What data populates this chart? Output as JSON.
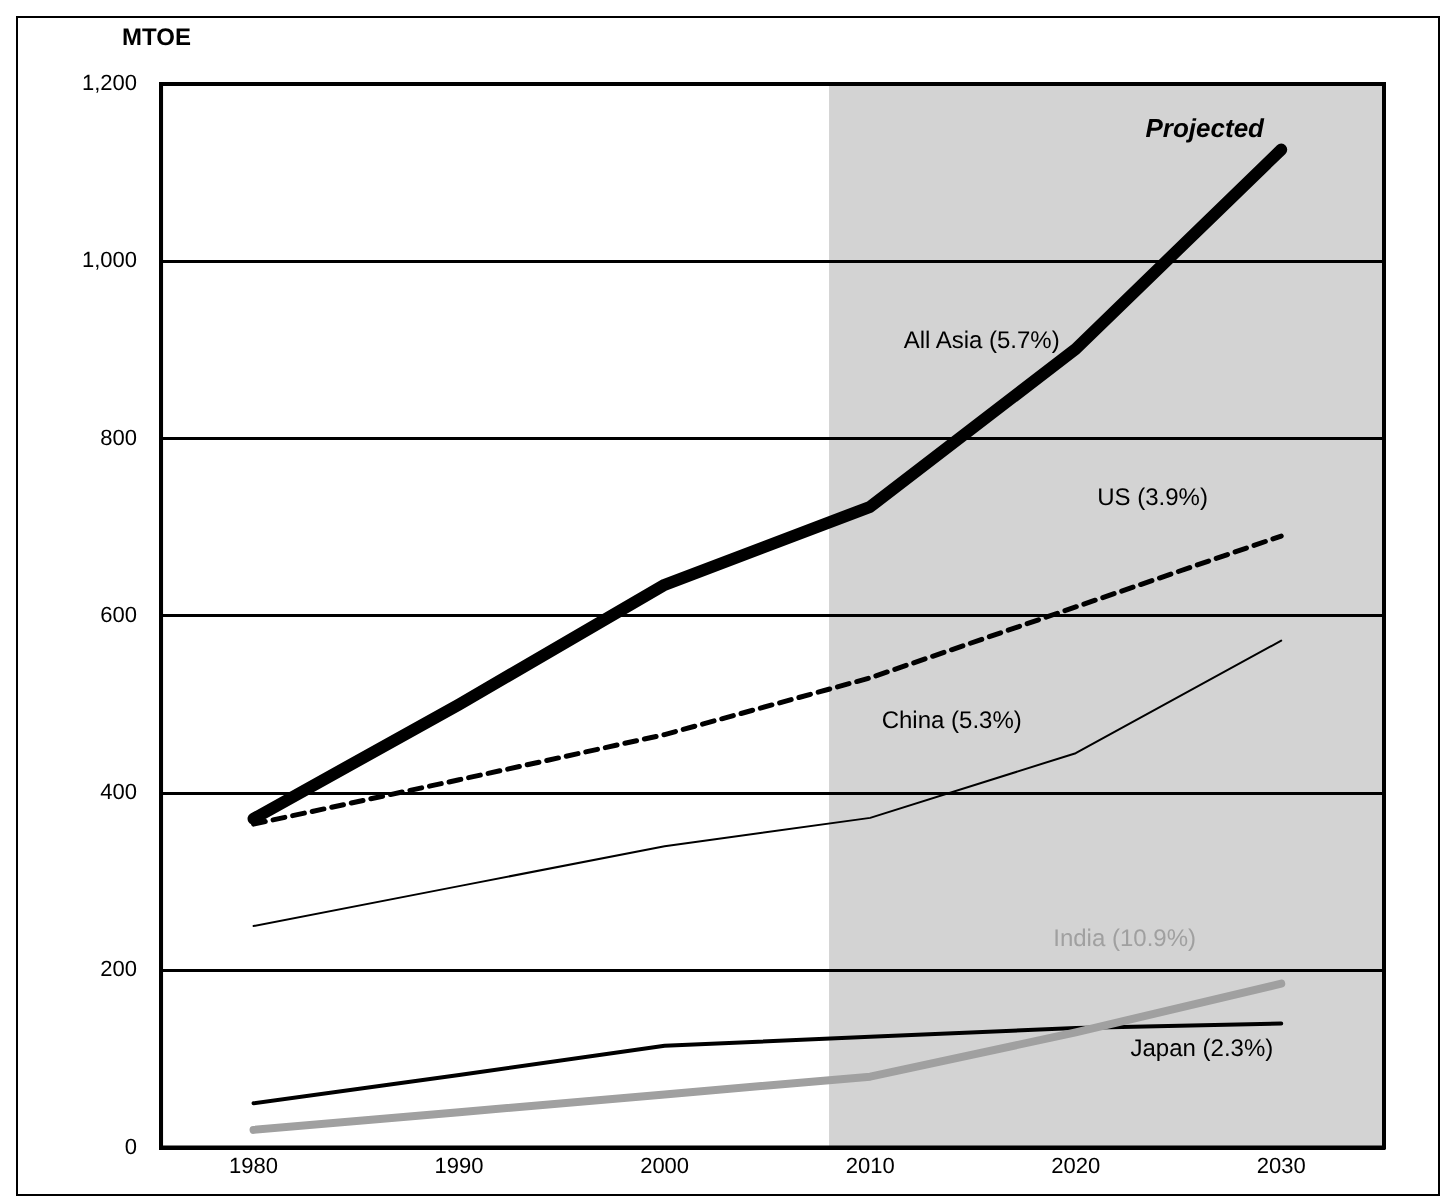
{
  "chart_data": {
    "type": "line",
    "ylabel": "MTOE",
    "x": [
      1980,
      1990,
      2000,
      2010,
      2020,
      2030
    ],
    "xlim": [
      1975.5,
      2035
    ],
    "xticks": [
      1980,
      1990,
      2000,
      2010,
      2020,
      2030
    ],
    "ylim": [
      0,
      1200
    ],
    "yticks": [
      0,
      {
        "value": 200,
        "label": "200"
      },
      {
        "value": 400,
        "label": "400"
      },
      {
        "value": 600,
        "label": "600"
      },
      {
        "value": 800,
        "label": "800"
      },
      {
        "value": 1000,
        "label": "1,000"
      },
      {
        "value": 1200,
        "label": "1,200"
      }
    ],
    "grid": "y",
    "legend": false,
    "marker": "none",
    "bands": [
      {
        "axis": "x",
        "from": 2008,
        "to": 2035,
        "label": "Projected",
        "color": "#d3d3d3"
      }
    ],
    "series": [
      {
        "name": "All Asia (5.7%)",
        "color": "#000000",
        "values": [
          371,
          500,
          635,
          723,
          901,
          1126
        ]
      },
      {
        "name": "US (3.9%)",
        "color": "#000000",
        "line_style": "dashed",
        "values": [
          365,
          415,
          466,
          530,
          610,
          690
        ]
      },
      {
        "name": "China (5.3%)",
        "color": "#000000",
        "values": [
          250,
          295,
          340,
          372,
          445,
          572
        ]
      },
      {
        "name": "India (10.9%)",
        "color": "#a0a0a0",
        "values": [
          20,
          40,
          60,
          80,
          130,
          185
        ]
      },
      {
        "name": "Japan (2.3%)",
        "color": "#000000",
        "values": [
          50,
          82,
          115,
          125,
          135,
          140
        ]
      }
    ]
  }
}
